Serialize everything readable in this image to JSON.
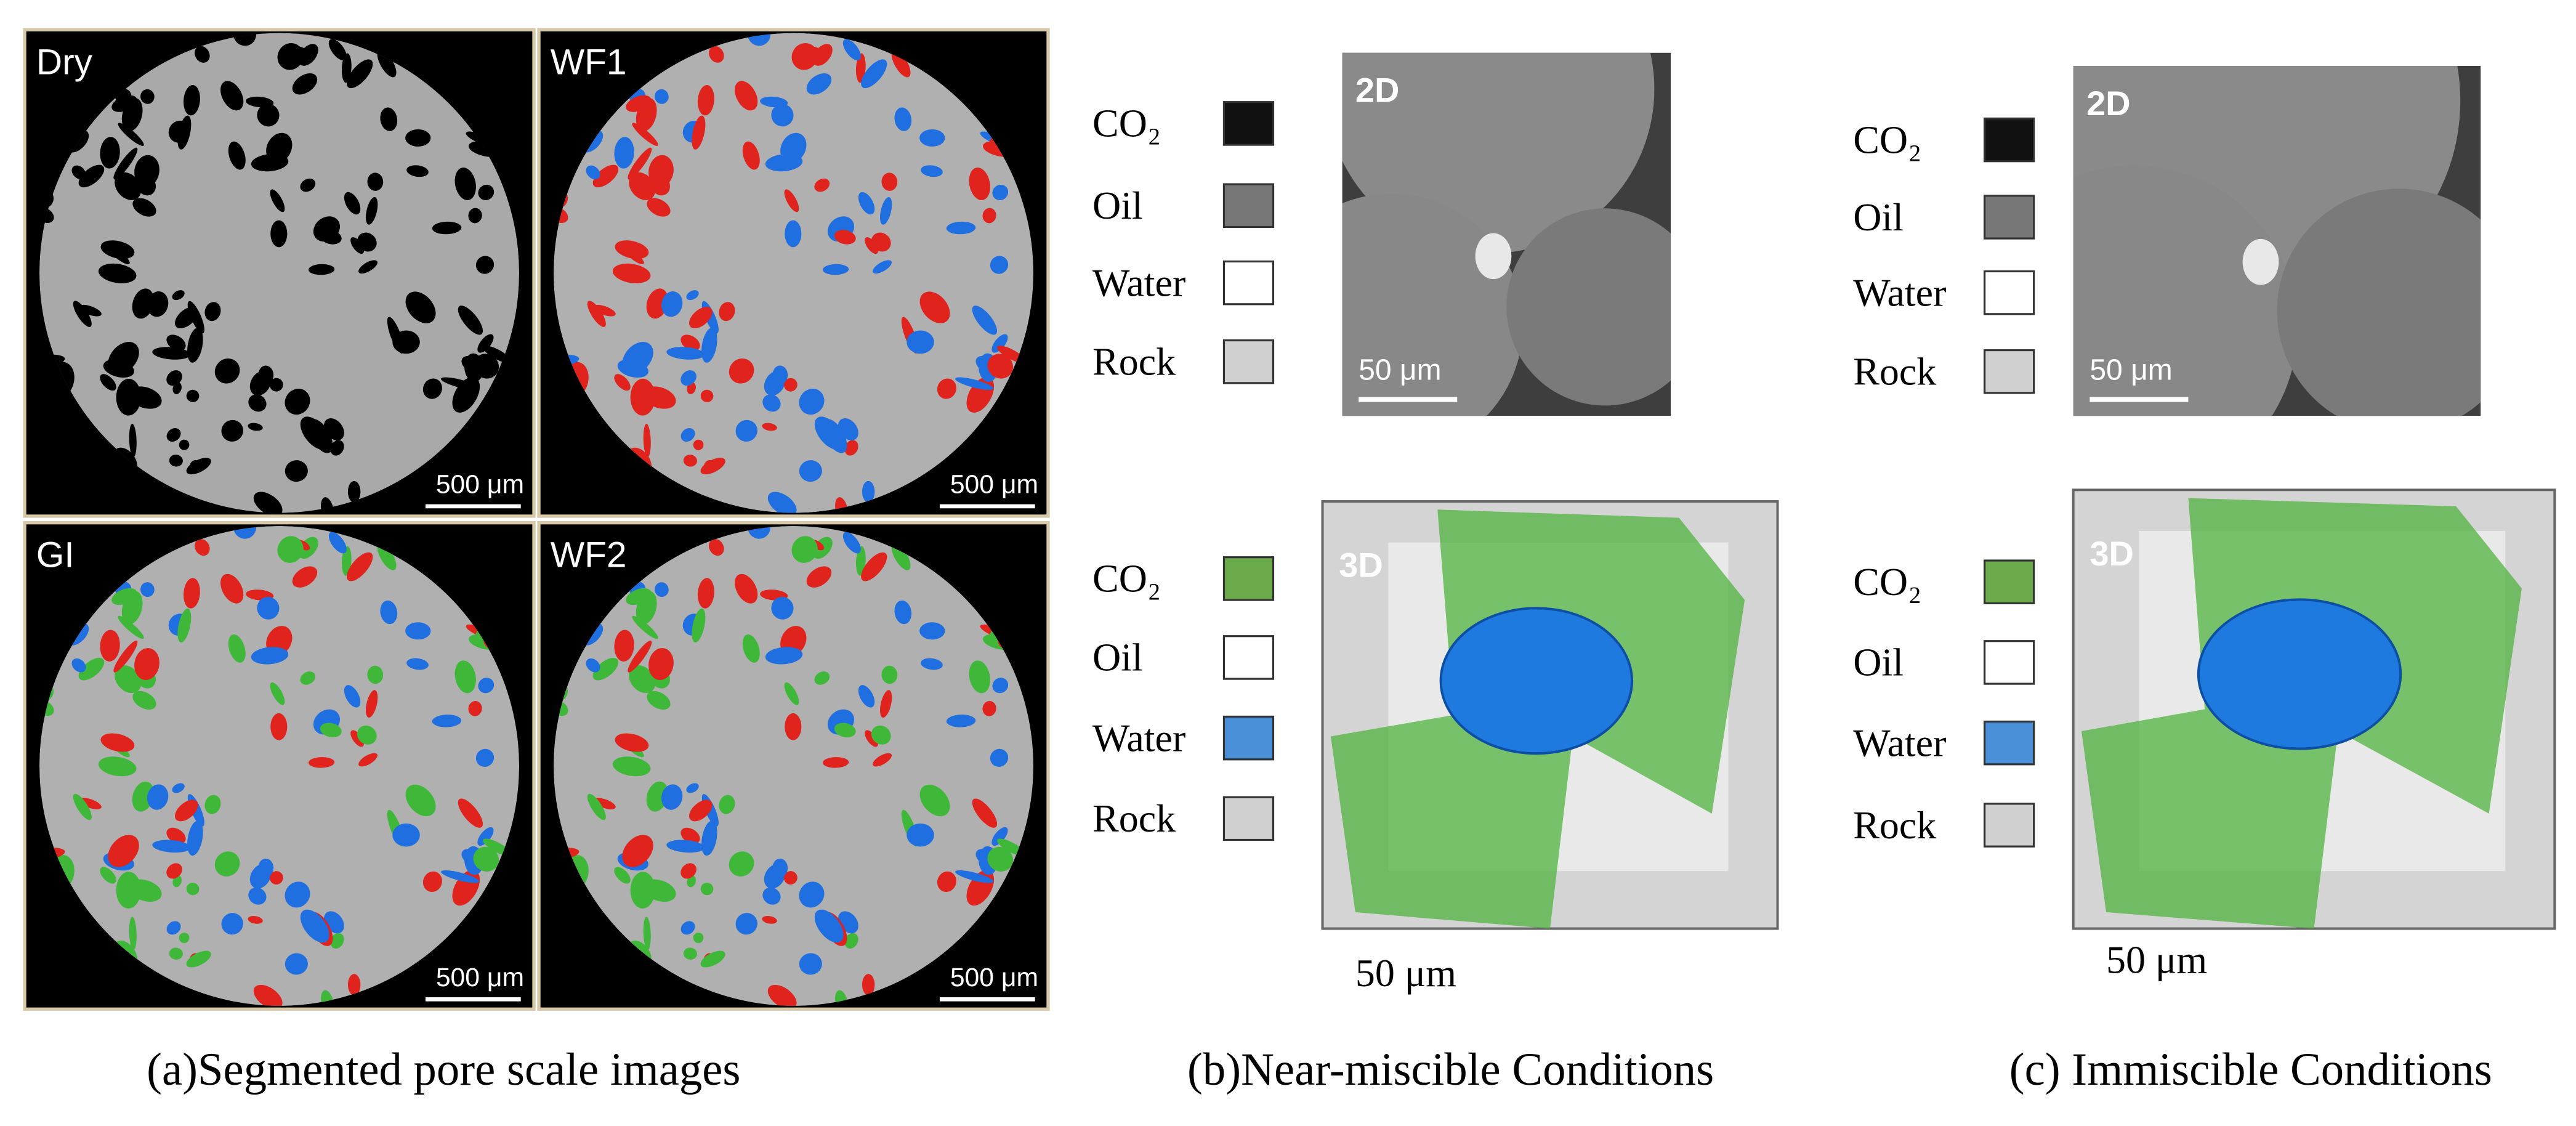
{
  "panels": [
    {
      "caption": "(a)Segmented pore scale images",
      "images": [
        {
          "label": "Dry",
          "scale_bar": "500 μm"
        },
        {
          "label": "WF1",
          "scale_bar": "500 μm"
        },
        {
          "label": "GI",
          "scale_bar": "500 μm"
        },
        {
          "label": "WF2",
          "scale_bar": "500 μm"
        }
      ]
    },
    {
      "caption": "(b)Near-miscible Conditions",
      "legend_2d": [
        "CO₂",
        "Oil",
        "Water",
        "Rock"
      ],
      "label_2d": "2D",
      "scale_2d": "50 μm",
      "legend_3d": [
        "CO₂",
        "Oil",
        "Water",
        "Rock"
      ],
      "label_3d": "3D",
      "scale_3d": "50 μm"
    },
    {
      "caption": "(c) Immiscible Conditions",
      "legend_2d": [
        "CO₂",
        "Oil",
        "Water",
        "Rock"
      ],
      "label_2d": "2D",
      "scale_2d": "50 μm",
      "legend_3d": [
        "CO₂",
        "Oil",
        "Water",
        "Rock"
      ],
      "label_3d": "3D",
      "scale_3d": "50 μm"
    }
  ]
}
